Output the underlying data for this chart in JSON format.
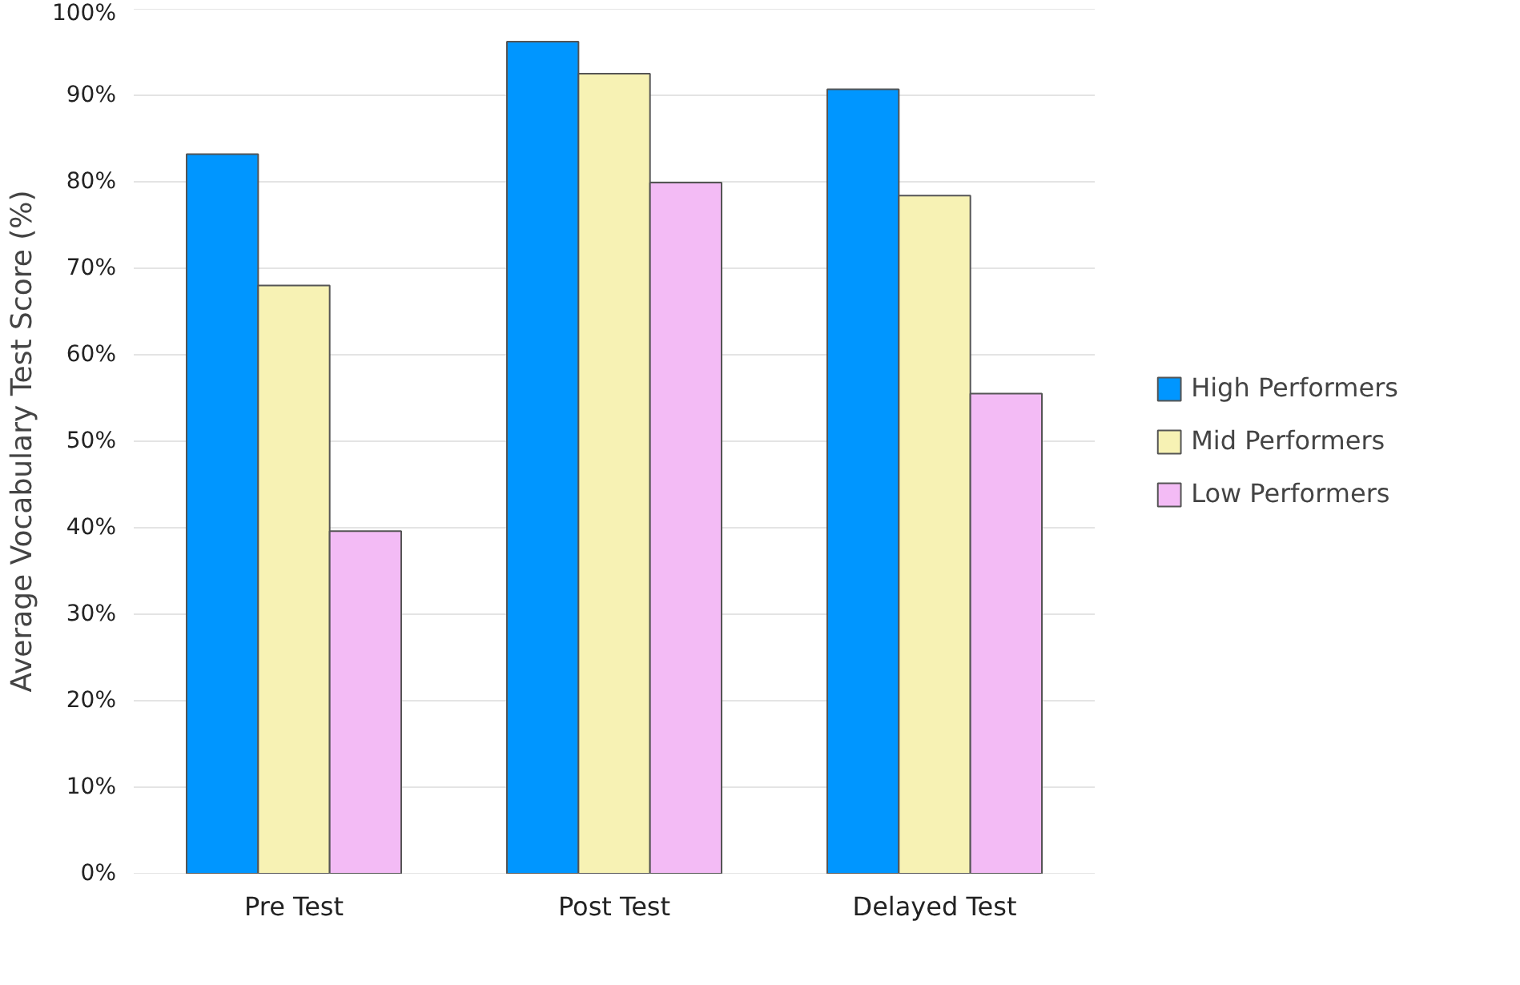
{
  "chart_data": {
    "type": "bar",
    "ylabel": "Average Vocabulary Test Score (%)",
    "categories": [
      "Pre Test",
      "Post Test",
      "Delayed Test"
    ],
    "series": [
      {
        "name": "High Performers",
        "color": "#0096ff",
        "values": [
          83.2,
          96.2,
          90.7
        ]
      },
      {
        "name": "Mid Performers",
        "color": "#f7f2b4",
        "values": [
          68.0,
          92.5,
          78.4
        ]
      },
      {
        "name": "Low Performers",
        "color": "#f3bbf5",
        "values": [
          39.6,
          79.9,
          55.5
        ]
      }
    ],
    "ylim": [
      0,
      100
    ],
    "yticks": [
      {
        "value": 0,
        "label": "0%"
      },
      {
        "value": 10,
        "label": "10%"
      },
      {
        "value": 20,
        "label": "20%"
      },
      {
        "value": 30,
        "label": "30%"
      },
      {
        "value": 40,
        "label": "40%"
      },
      {
        "value": 50,
        "label": "50%"
      },
      {
        "value": 60,
        "label": "60%"
      },
      {
        "value": 70,
        "label": "70%"
      },
      {
        "value": 80,
        "label": "80%"
      },
      {
        "value": 90,
        "label": "90%"
      },
      {
        "value": 100,
        "label": "100%"
      }
    ],
    "grid": "y",
    "legend": "right"
  }
}
